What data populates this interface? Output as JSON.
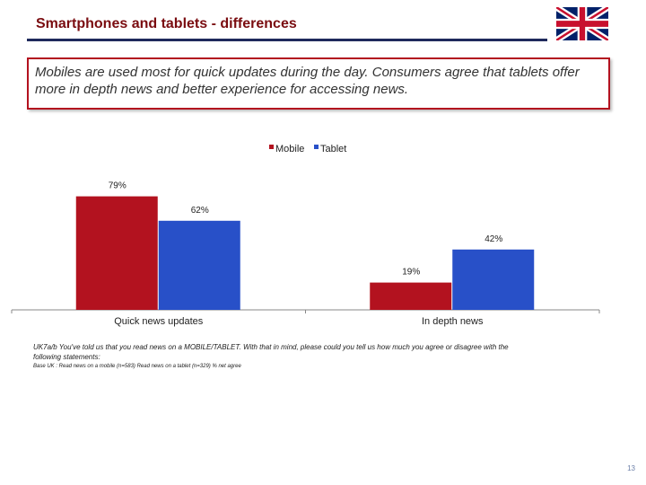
{
  "header": {
    "title": "Smartphones and tablets - differences"
  },
  "callout": {
    "text": "Mobiles are used most for quick updates during the day. Consumers agree that tablets offer more in depth news and better experience for accessing news."
  },
  "colors": {
    "mobile": "#b3121f",
    "tablet": "#2850c8",
    "accent": "#7a0c10",
    "rule": "#1f2a5c"
  },
  "flag_icon": "uk-flag-icon",
  "chart_data": {
    "type": "bar",
    "categories": [
      "Quick news updates",
      "In depth news"
    ],
    "series": [
      {
        "name": "Mobile",
        "values": [
          79,
          19
        ],
        "labels": [
          "79%",
          "19%"
        ]
      },
      {
        "name": "Tablet",
        "values": [
          62,
          42
        ],
        "labels": [
          "62%",
          "42%"
        ]
      }
    ],
    "ylim": [
      0,
      100
    ],
    "legend": "top-center",
    "grid": false
  },
  "footnote": {
    "question": "UK7a/b You've told us that you read news on a MOBILE/TABLET. With that in mind, please could you tell us how much you agree or disagree with the following statements:",
    "base": "Base UK : Read news on a mobile (n=583) Read news on a tablet (n=329) % net agree"
  },
  "page_number": "13"
}
